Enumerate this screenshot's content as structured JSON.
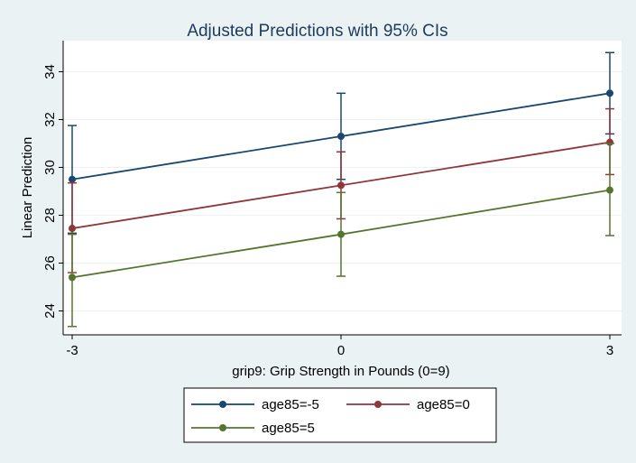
{
  "chart_data": {
    "type": "line",
    "title": "Adjusted Predictions with 95% CIs",
    "xlabel": "grip9: Grip Strength in Pounds (0=9)",
    "ylabel": "Linear Prediction",
    "x": [
      -3,
      0,
      3
    ],
    "x_ticks": [
      -3,
      0,
      3
    ],
    "x_tick_labels": [
      "-3",
      "0",
      "3"
    ],
    "xlim": [
      -3,
      3
    ],
    "y_ticks": [
      24,
      26,
      28,
      30,
      32,
      34
    ],
    "y_tick_labels": [
      "24",
      "26",
      "28",
      "30",
      "32",
      "34"
    ],
    "ylim": [
      23.0,
      35.3
    ],
    "grid": "horizontal",
    "legend": "bottom",
    "series": [
      {
        "name": "age85=-5",
        "color": "#1a476f",
        "values": [
          29.5,
          31.3,
          33.1
        ],
        "ci_low": [
          27.25,
          29.5,
          31.4
        ],
        "ci_high": [
          31.75,
          33.1,
          34.8
        ]
      },
      {
        "name": "age85=0",
        "color": "#90353b",
        "values": [
          27.45,
          29.25,
          31.05
        ],
        "ci_low": [
          25.6,
          27.85,
          29.7
        ],
        "ci_high": [
          29.35,
          30.65,
          32.45
        ]
      },
      {
        "name": "age85=5",
        "color": "#55752f",
        "values": [
          25.4,
          27.2,
          29.05
        ],
        "ci_low": [
          23.35,
          25.45,
          27.15
        ],
        "ci_high": [
          27.2,
          28.95,
          31.0
        ]
      }
    ]
  }
}
